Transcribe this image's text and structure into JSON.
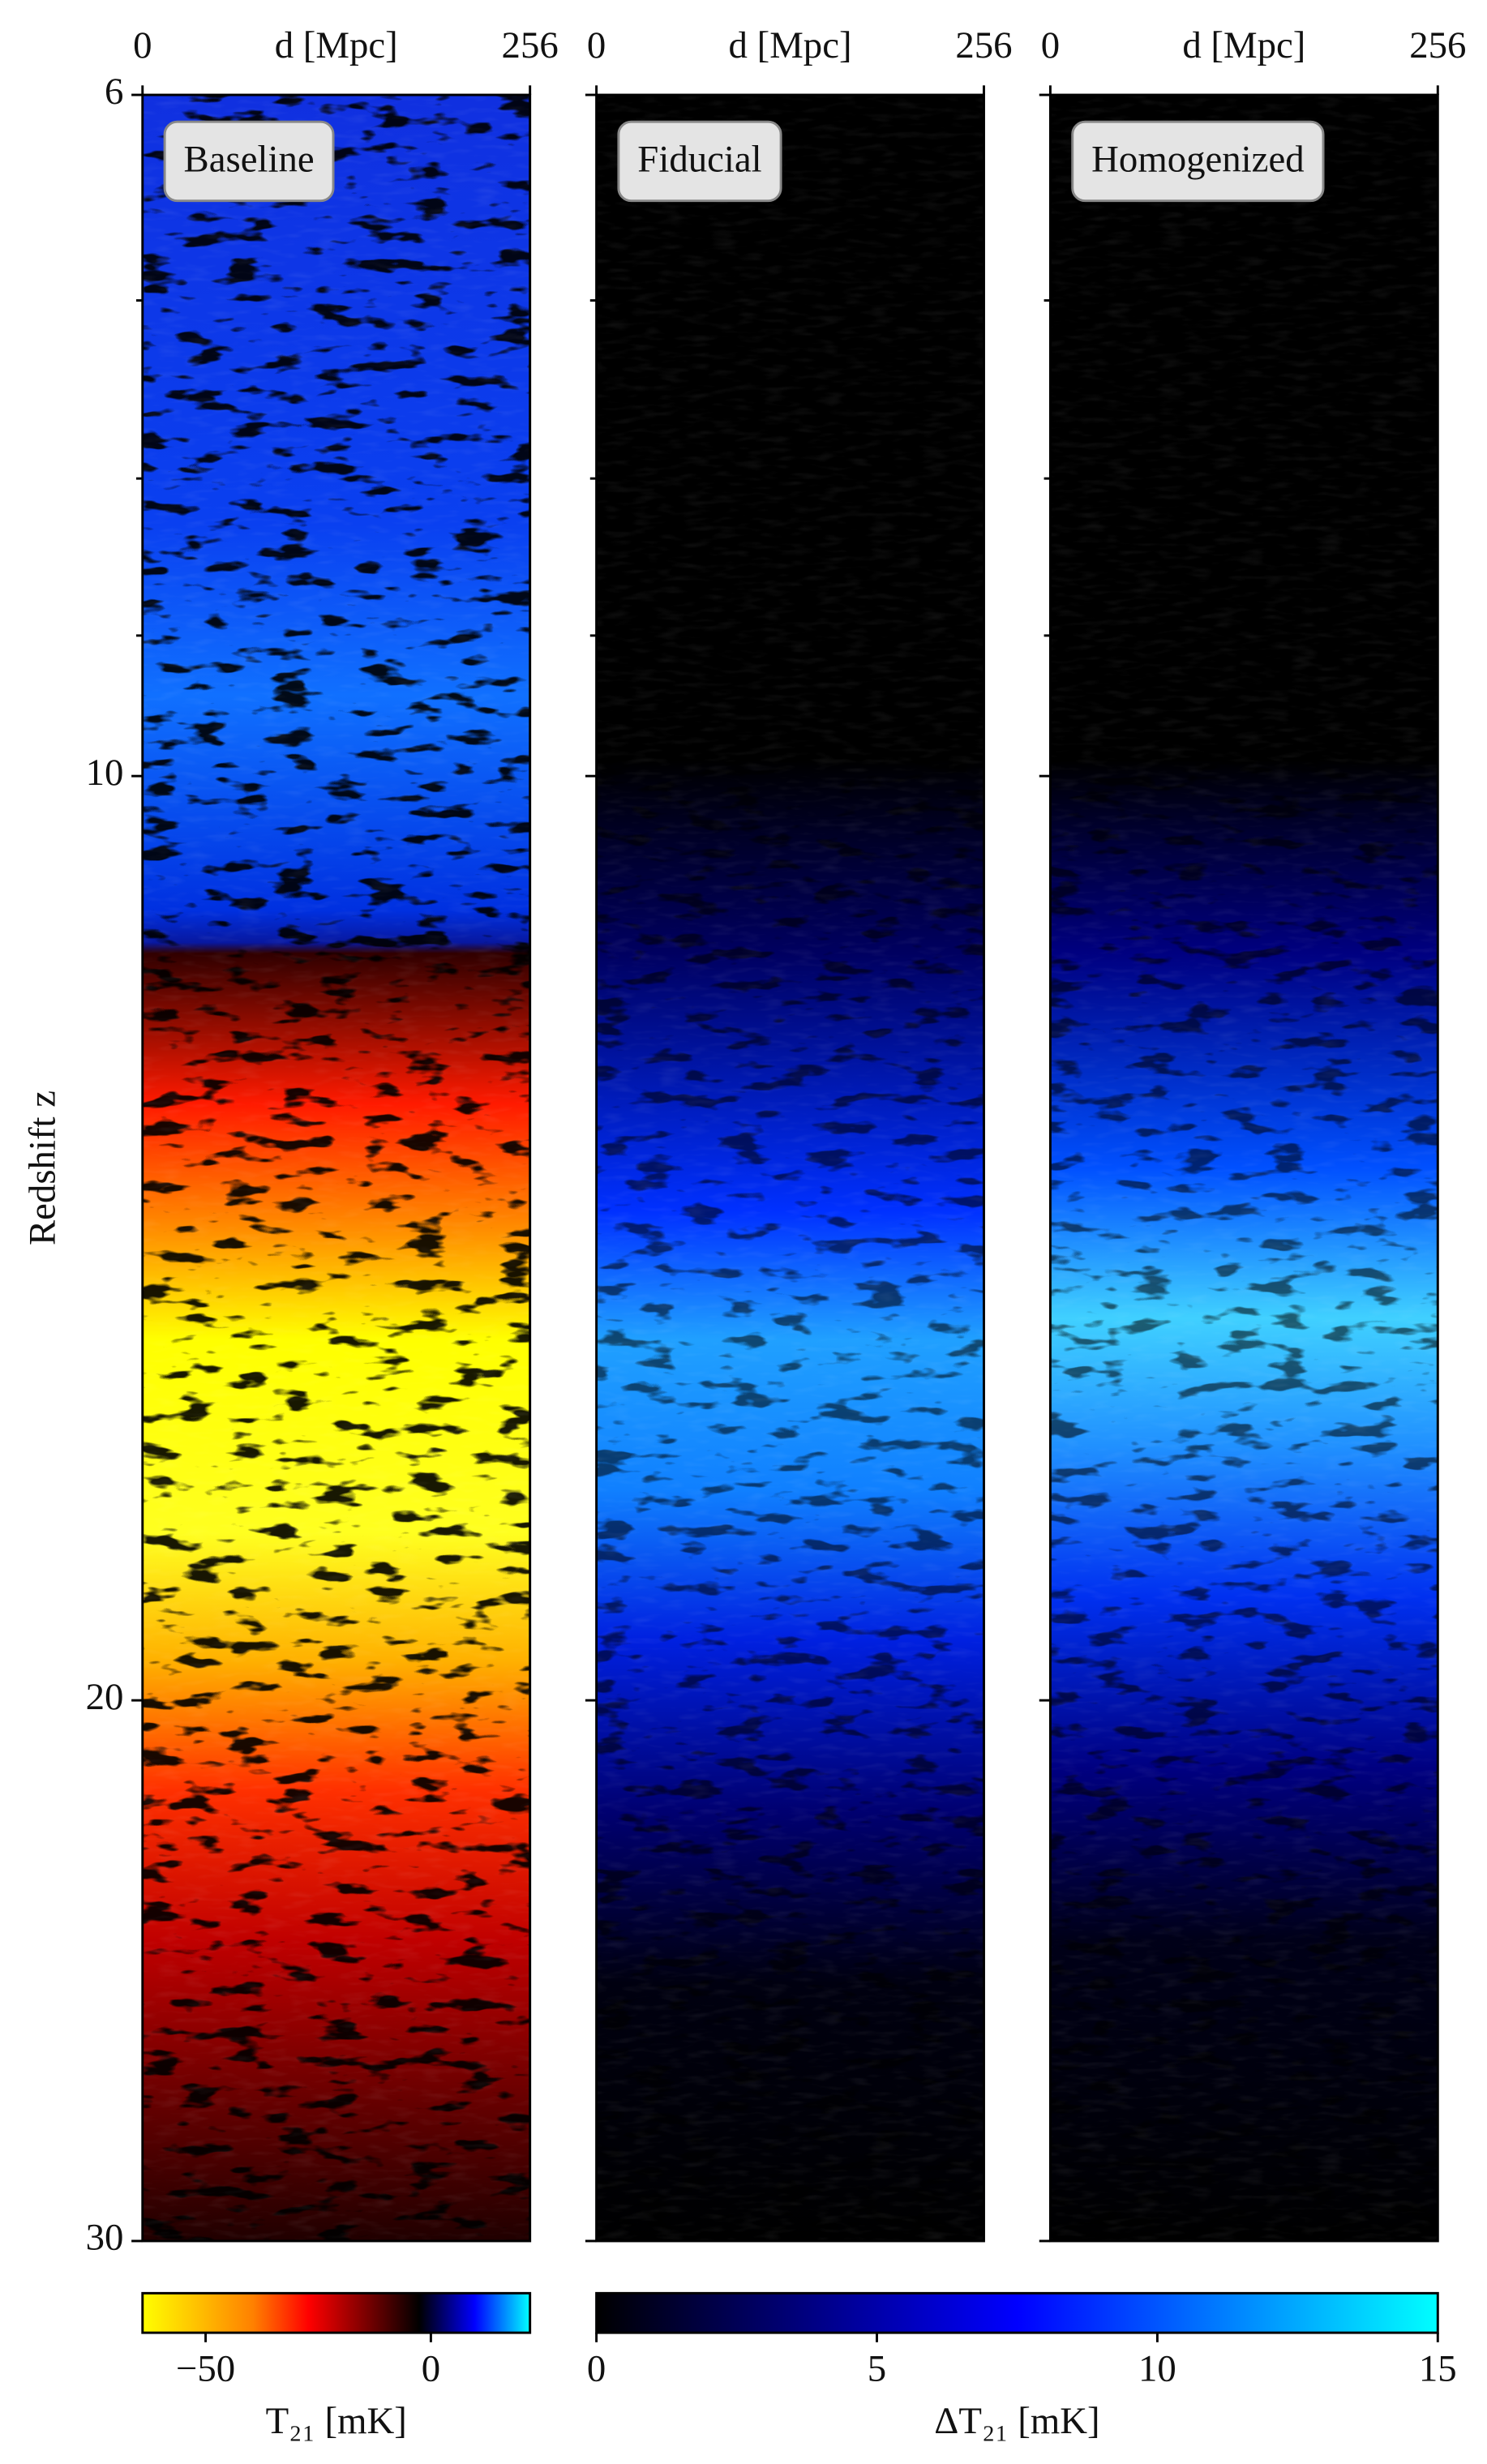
{
  "chart_data": [
    {
      "type": "heatmap",
      "title": "Baseline",
      "xlabel": "d [Mpc]",
      "xlim": [
        0,
        256
      ],
      "xticks": [
        0,
        256
      ],
      "ylabel": "Redshift z",
      "ylim": [
        6,
        30
      ],
      "yticks": [
        6,
        10,
        20,
        30
      ],
      "minor_yticks": [
        7,
        8,
        9
      ],
      "ylog": true
    },
    {
      "type": "heatmap",
      "title": "Fiducial",
      "xlabel": "d [Mpc]",
      "xlim": [
        0,
        256
      ],
      "xticks": [
        0,
        256
      ]
    },
    {
      "type": "heatmap",
      "title": "Homogenized",
      "xlabel": "d [Mpc]",
      "xlim": [
        0,
        256
      ],
      "xticks": [
        0,
        256
      ]
    }
  ],
  "colorbars": [
    {
      "label": "T₂₁ [mK]",
      "xlim": [
        -64,
        22
      ],
      "xticks": [
        {
          "value": -50,
          "label": "−50"
        },
        0
      ],
      "colors": [
        "#ffff00",
        "#ffc000",
        "#ff8000",
        "#ff0000",
        "#800000",
        "#000000",
        "#0000ff",
        "#00ffff"
      ]
    },
    {
      "label": "ΔT₂₁ [mK]",
      "xlim": [
        0,
        15
      ],
      "xticks": [
        0,
        5,
        10,
        15
      ],
      "colors": [
        "#000000",
        "#000080",
        "#0000ff",
        "#0080ff",
        "#00ffff"
      ]
    }
  ]
}
